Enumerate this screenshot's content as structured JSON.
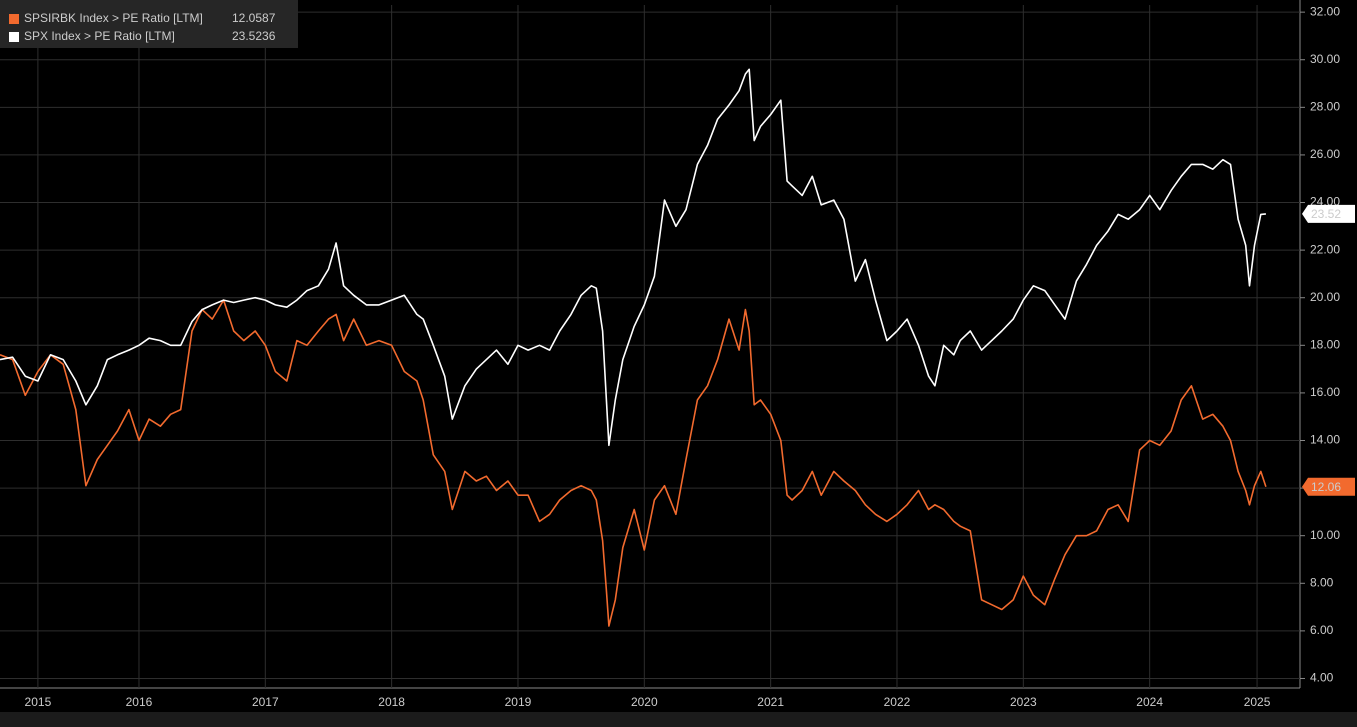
{
  "chart_data": {
    "type": "line",
    "x": [
      2015.4,
      2015.5,
      2015.6,
      2015.7,
      2015.8,
      2015.9,
      2016.0,
      2016.08,
      2016.17,
      2016.25,
      2016.33,
      2016.42,
      2016.5,
      2016.58,
      2016.67,
      2016.75,
      2016.83,
      2016.92,
      2017.0,
      2017.08,
      2017.17,
      2017.25,
      2017.33,
      2017.42,
      2017.5,
      2017.58,
      2017.67,
      2017.75,
      2017.83,
      2017.92,
      2018.0,
      2018.06,
      2018.12,
      2018.2,
      2018.3,
      2018.4,
      2018.5,
      2018.6,
      2018.7,
      2018.75,
      2018.83,
      2018.92,
      2018.98,
      2019.08,
      2019.17,
      2019.25,
      2019.33,
      2019.42,
      2019.5,
      2019.58,
      2019.67,
      2019.75,
      2019.83,
      2019.92,
      2020.0,
      2020.08,
      2020.12,
      2020.17,
      2020.2,
      2020.22,
      2020.27,
      2020.33,
      2020.42,
      2020.5,
      2020.58,
      2020.66,
      2020.75,
      2020.83,
      2020.92,
      2021.0,
      2021.08,
      2021.17,
      2021.25,
      2021.3,
      2021.33,
      2021.37,
      2021.42,
      2021.5,
      2021.58,
      2021.63,
      2021.67,
      2021.75,
      2021.83,
      2021.9,
      2022.0,
      2022.08,
      2022.17,
      2022.25,
      2022.33,
      2022.42,
      2022.5,
      2022.58,
      2022.67,
      2022.75,
      2022.8,
      2022.87,
      2022.95,
      2023.0,
      2023.08,
      2023.17,
      2023.25,
      2023.33,
      2023.42,
      2023.5,
      2023.58,
      2023.67,
      2023.75,
      2023.83,
      2023.92,
      2024.0,
      2024.08,
      2024.17,
      2024.25,
      2024.33,
      2024.42,
      2024.5,
      2024.58,
      2024.67,
      2024.75,
      2024.83,
      2024.92,
      2025.0,
      2025.08,
      2025.14,
      2025.2,
      2025.26,
      2025.29,
      2025.33,
      2025.38,
      2025.42
    ],
    "series": [
      {
        "name": "SPSIRBK Index > PE Ratio [LTM]",
        "color": "#f26a2e",
        "last_label": "12.06",
        "values": [
          17.6,
          17.4,
          15.9,
          16.9,
          17.6,
          17.2,
          15.3,
          12.1,
          13.2,
          13.8,
          14.4,
          15.3,
          14.0,
          14.9,
          14.6,
          15.1,
          15.3,
          18.6,
          19.5,
          19.1,
          19.9,
          18.6,
          18.2,
          18.6,
          18.0,
          16.9,
          16.5,
          18.2,
          18.0,
          18.6,
          19.1,
          19.3,
          18.2,
          19.1,
          18.0,
          18.2,
          18.0,
          16.9,
          16.5,
          15.7,
          13.4,
          12.7,
          11.1,
          12.7,
          12.3,
          12.5,
          11.9,
          12.3,
          11.7,
          11.7,
          10.6,
          10.9,
          11.5,
          11.9,
          12.1,
          11.9,
          11.5,
          9.8,
          7.7,
          6.2,
          7.3,
          9.5,
          11.1,
          9.4,
          11.5,
          12.1,
          10.9,
          13.2,
          15.7,
          16.3,
          17.4,
          19.1,
          17.8,
          19.5,
          18.6,
          15.5,
          15.7,
          15.1,
          14.0,
          11.7,
          11.5,
          11.9,
          12.7,
          11.7,
          12.7,
          12.3,
          11.9,
          11.3,
          10.9,
          10.6,
          10.9,
          11.3,
          11.9,
          11.1,
          11.3,
          11.1,
          10.6,
          10.4,
          10.2,
          7.3,
          7.1,
          6.9,
          7.3,
          8.3,
          7.5,
          7.1,
          8.2,
          9.2,
          10.0,
          10.0,
          10.2,
          11.1,
          11.3,
          10.6,
          13.6,
          14.0,
          13.8,
          14.4,
          15.7,
          16.3,
          14.9,
          15.1,
          14.6,
          14.0,
          12.7,
          11.9,
          11.3,
          12.1,
          12.7,
          12.0587
        ]
      },
      {
        "name": "SPX Index > PE Ratio [LTM]",
        "color": "#ffffff",
        "last_label": "23.52",
        "values": [
          17.4,
          17.5,
          16.7,
          16.5,
          17.6,
          17.4,
          16.5,
          15.5,
          16.3,
          17.4,
          17.6,
          17.8,
          18.0,
          18.3,
          18.2,
          18.0,
          18.0,
          19.0,
          19.5,
          19.7,
          19.9,
          19.8,
          19.9,
          20.0,
          19.9,
          19.7,
          19.6,
          19.9,
          20.3,
          20.5,
          21.2,
          22.3,
          20.5,
          20.1,
          19.7,
          19.7,
          19.9,
          20.1,
          19.3,
          19.1,
          18.0,
          16.7,
          14.9,
          16.3,
          17.0,
          17.4,
          17.8,
          17.2,
          18.0,
          17.8,
          18.0,
          17.8,
          18.6,
          19.3,
          20.1,
          20.5,
          20.4,
          18.6,
          15.7,
          13.8,
          15.7,
          17.4,
          18.8,
          19.7,
          20.9,
          24.1,
          23.0,
          23.7,
          25.6,
          26.4,
          27.5,
          28.1,
          28.7,
          29.4,
          29.6,
          26.6,
          27.2,
          27.7,
          28.3,
          24.9,
          24.7,
          24.3,
          25.1,
          23.9,
          24.1,
          23.3,
          20.7,
          21.6,
          19.9,
          18.2,
          18.6,
          19.1,
          18.0,
          16.7,
          16.3,
          18.0,
          17.6,
          18.2,
          18.6,
          17.8,
          18.2,
          18.6,
          19.1,
          19.9,
          20.5,
          20.3,
          19.7,
          19.1,
          20.7,
          21.4,
          22.2,
          22.8,
          23.5,
          23.3,
          23.7,
          24.3,
          23.7,
          24.5,
          25.1,
          25.6,
          25.6,
          25.4,
          25.8,
          25.6,
          23.3,
          22.2,
          20.5,
          22.2,
          23.5,
          23.5236
        ]
      }
    ],
    "xlim": [
      2015.4,
      2025.69
    ],
    "xticks": [
      {
        "value": 2015.7,
        "label": "2015"
      },
      {
        "value": 2016.5,
        "label": "2016"
      },
      {
        "value": 2017.5,
        "label": "2017"
      },
      {
        "value": 2018.5,
        "label": "2018"
      },
      {
        "value": 2019.5,
        "label": "2019"
      },
      {
        "value": 2020.5,
        "label": "2020"
      },
      {
        "value": 2021.5,
        "label": "2021"
      },
      {
        "value": 2022.5,
        "label": "2022"
      },
      {
        "value": 2023.5,
        "label": "2023"
      },
      {
        "value": 2024.5,
        "label": "2024"
      },
      {
        "value": 2025.35,
        "label": "2025"
      }
    ],
    "ylim": [
      3.6,
      32.3
    ],
    "yticks": [
      {
        "value": 4,
        "label": "4.00"
      },
      {
        "value": 6,
        "label": "6.00"
      },
      {
        "value": 8,
        "label": "8.00"
      },
      {
        "value": 10,
        "label": "10.00"
      },
      {
        "value": 12,
        "label": "12.00"
      },
      {
        "value": 14,
        "label": "14.00"
      },
      {
        "value": 16,
        "label": "16.00"
      },
      {
        "value": 18,
        "label": "18.00"
      },
      {
        "value": 20,
        "label": "20.00"
      },
      {
        "value": 22,
        "label": "22.00"
      },
      {
        "value": 24,
        "label": "24.00"
      },
      {
        "value": 26,
        "label": "26.00"
      },
      {
        "value": 28,
        "label": "28.00"
      },
      {
        "value": 30,
        "label": "30.00"
      },
      {
        "value": 32,
        "label": "32.00"
      }
    ],
    "grid": true
  }
}
